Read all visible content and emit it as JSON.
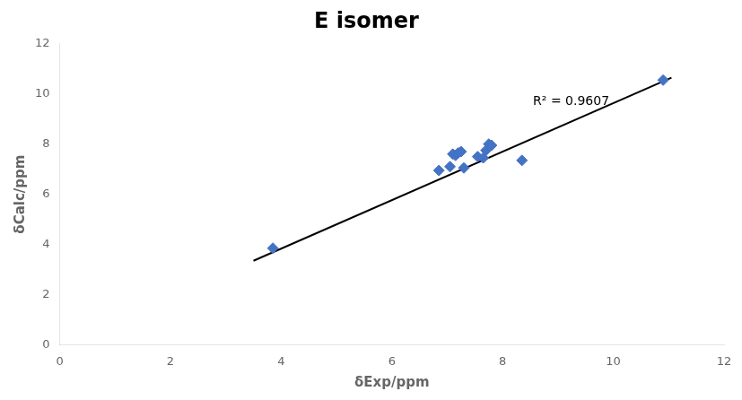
{
  "chart_data": {
    "type": "scatter",
    "title": "E isomer",
    "xlabel": "δExp/ppm",
    "ylabel": "δCalc/ppm",
    "series": [
      {
        "type": "scatter",
        "color": "#4472C4",
        "marker": "diamond",
        "x": [
          3.85,
          6.85,
          7.05,
          7.1,
          7.15,
          7.2,
          7.25,
          7.3,
          7.55,
          7.65,
          7.7,
          7.75,
          7.8,
          8.35,
          10.9
        ],
        "values": [
          3.85,
          6.95,
          7.1,
          7.6,
          7.55,
          7.65,
          7.7,
          7.05,
          7.5,
          7.45,
          7.75,
          8.0,
          7.95,
          7.35,
          10.55
        ]
      },
      {
        "type": "line",
        "color": "#000000",
        "line_style": "solid",
        "x": [
          3.5,
          11.05
        ],
        "values": [
          3.35,
          10.65
        ]
      }
    ],
    "annotations": [
      {
        "text": "R² = 0.9607",
        "x": 8.55,
        "y": 9.55
      }
    ],
    "xlim": [
      0,
      12
    ],
    "ylim": [
      0,
      12
    ],
    "xticks": [
      0,
      2,
      4,
      6,
      8,
      10,
      12
    ],
    "yticks": [
      0,
      2,
      4,
      6,
      8,
      10,
      12
    ],
    "grid": false
  }
}
